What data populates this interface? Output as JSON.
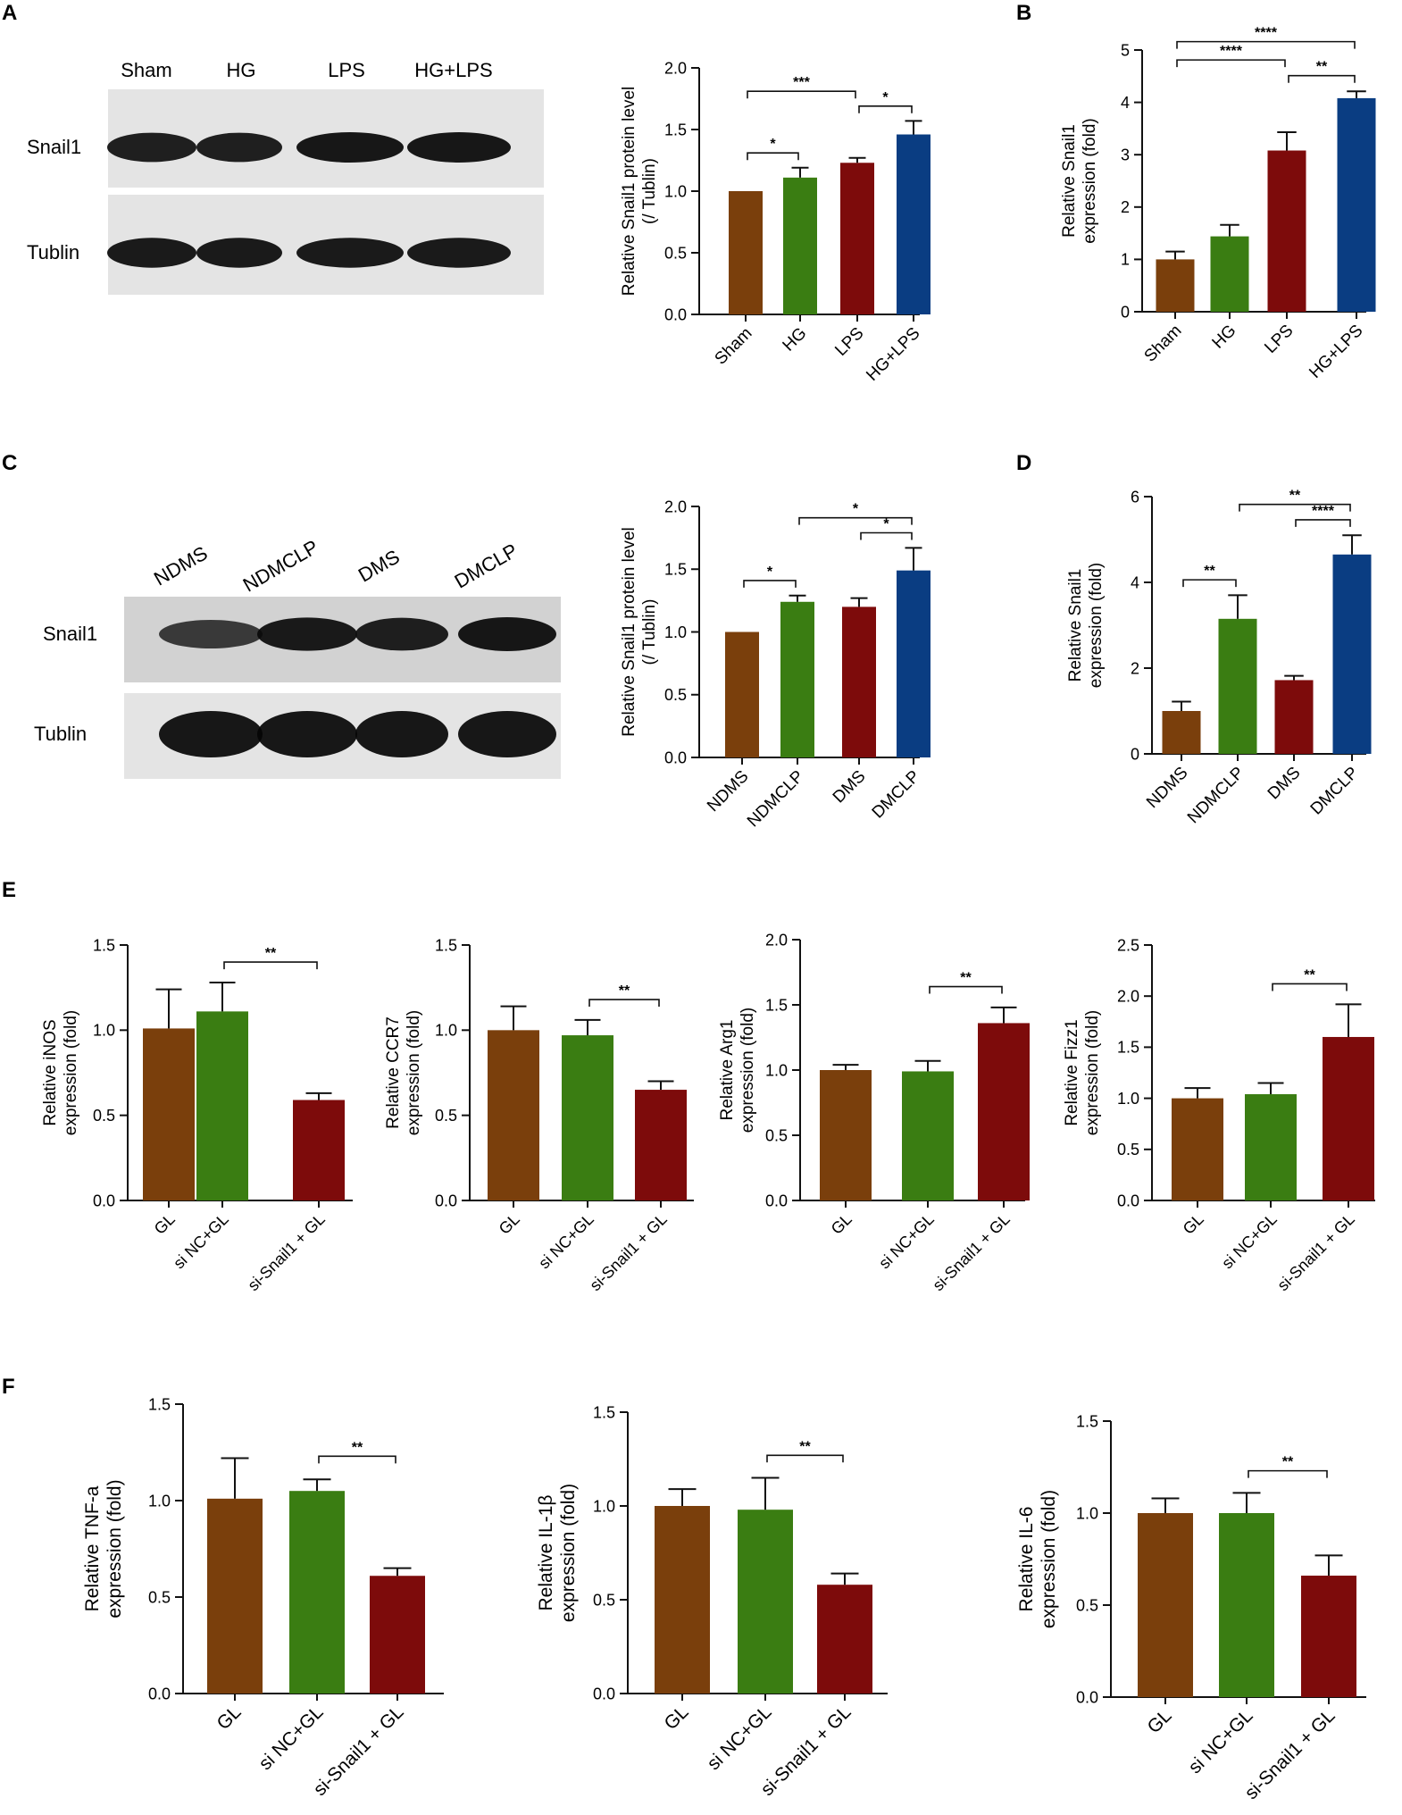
{
  "colors": {
    "brown": "#7a3f0c",
    "green": "#3a7d12",
    "red": "#7d0b0b",
    "blue": "#0a3d82",
    "axis": "#111111"
  },
  "panels": [
    {
      "id": "A",
      "label": "A"
    },
    {
      "id": "B",
      "label": "B"
    },
    {
      "id": "C",
      "label": "C"
    },
    {
      "id": "D",
      "label": "D"
    },
    {
      "id": "E",
      "label": "E"
    },
    {
      "id": "F",
      "label": "F"
    }
  ],
  "blots": [
    {
      "id": "blotA",
      "lane_labels": [
        "Sham",
        "HG",
        "LPS",
        "HG+LPS"
      ],
      "lane_label_rotated": false,
      "row_labels": [
        "Snail1",
        "Tublin"
      ],
      "intensities": {
        "Snail1": [
          0.9,
          0.9,
          1.0,
          1.0
        ],
        "Tublin": [
          0.95,
          0.95,
          0.95,
          0.95
        ]
      }
    },
    {
      "id": "blotC",
      "lane_labels": [
        "NDMS",
        "NDMCLP",
        "DMS",
        "DMCLP"
      ],
      "lane_label_rotated": true,
      "row_labels": [
        "Snail1",
        "Tublin"
      ],
      "intensities": {
        "Snail1": [
          0.55,
          0.95,
          0.9,
          1.0
        ],
        "Tublin": [
          1.0,
          1.0,
          1.0,
          1.0
        ]
      }
    }
  ],
  "chart_data": [
    {
      "id": "A-bar",
      "type": "bar",
      "categories": [
        "Sham",
        "HG",
        "LPS",
        "HG+LPS"
      ],
      "values": [
        1.0,
        1.11,
        1.23,
        1.46
      ],
      "errors": [
        0,
        0.08,
        0.04,
        0.11
      ],
      "colors": [
        "brown",
        "green",
        "red",
        "blue"
      ],
      "ylabel": [
        "Relative Snail1 protein level",
        "(/ Tublin)"
      ],
      "ylim": [
        0,
        2.0
      ],
      "yticks": [
        "0.0",
        "0.5",
        "1.0",
        "1.5",
        "2.0"
      ],
      "significance": [
        {
          "from": 0,
          "to": 1,
          "label": "*"
        },
        {
          "from": 0,
          "to": 2,
          "label": "***"
        },
        {
          "from": 2,
          "to": 3,
          "label": "*"
        }
      ]
    },
    {
      "id": "B-bar",
      "type": "bar",
      "categories": [
        "Sham",
        "HG",
        "LPS",
        "HG+LPS"
      ],
      "values": [
        1.0,
        1.44,
        3.08,
        4.08
      ],
      "errors": [
        0.15,
        0.22,
        0.35,
        0.13
      ],
      "colors": [
        "brown",
        "green",
        "red",
        "blue"
      ],
      "ylabel": [
        "Relative Snail1",
        "expression (fold)"
      ],
      "ylim": [
        0,
        5
      ],
      "yticks": [
        "0",
        "1",
        "2",
        "3",
        "4",
        "5"
      ],
      "significance": [
        {
          "from": 0,
          "to": 3,
          "label": "****"
        },
        {
          "from": 2,
          "to": 3,
          "label": "**"
        },
        {
          "from": 0,
          "to": 2,
          "label": "****"
        }
      ]
    },
    {
      "id": "C-bar",
      "type": "bar",
      "categories": [
        "NDMS",
        "NDMCLP",
        "DMS",
        "DMCLP"
      ],
      "values": [
        1.0,
        1.24,
        1.2,
        1.49
      ],
      "errors": [
        0,
        0.05,
        0.07,
        0.18
      ],
      "colors": [
        "brown",
        "green",
        "red",
        "blue"
      ],
      "ylabel": [
        "Relative Snail1 protein level",
        "(/ Tublin)"
      ],
      "ylim": [
        0,
        2.0
      ],
      "yticks": [
        "0.0",
        "0.5",
        "1.0",
        "1.5",
        "2.0"
      ],
      "significance": [
        {
          "from": 1,
          "to": 3,
          "label": "*"
        },
        {
          "from": 2,
          "to": 3,
          "label": "*"
        },
        {
          "from": 0,
          "to": 1,
          "label": "*"
        }
      ]
    },
    {
      "id": "D-bar",
      "type": "bar",
      "categories": [
        "NDMS",
        "NDMCLP",
        "DMS",
        "DMCLP"
      ],
      "values": [
        1.0,
        3.15,
        1.72,
        4.65
      ],
      "errors": [
        0.22,
        0.55,
        0.1,
        0.45
      ],
      "colors": [
        "brown",
        "green",
        "red",
        "blue"
      ],
      "ylabel": [
        "Relative Snail1",
        "expression (fold)"
      ],
      "ylim": [
        0,
        6
      ],
      "yticks": [
        "0",
        "2",
        "4",
        "6"
      ],
      "significance": [
        {
          "from": 1,
          "to": 3,
          "label": "**"
        },
        {
          "from": 2,
          "to": 3,
          "label": "****"
        },
        {
          "from": 0,
          "to": 1,
          "label": "**"
        }
      ]
    },
    {
      "id": "E1",
      "type": "bar",
      "categories": [
        "GL",
        "si NC+GL",
        "si-Snail1 + GL"
      ],
      "values": [
        1.01,
        1.11,
        0.59
      ],
      "errors": [
        0.23,
        0.17,
        0.04
      ],
      "colors": [
        "brown",
        "green",
        "red"
      ],
      "ylabel": [
        "Relative iNOS",
        "expression (fold)"
      ],
      "ylim": [
        0,
        1.5
      ],
      "yticks": [
        "0.0",
        "0.5",
        "1.0",
        "1.5"
      ],
      "significance": [
        {
          "from": 1,
          "to": 2,
          "label": "**"
        }
      ]
    },
    {
      "id": "E2",
      "type": "bar",
      "categories": [
        "GL",
        "si NC+GL",
        "si-Snail1 + GL"
      ],
      "values": [
        1.0,
        0.97,
        0.65
      ],
      "errors": [
        0.14,
        0.09,
        0.05
      ],
      "colors": [
        "brown",
        "green",
        "red"
      ],
      "ylabel": [
        "Relative CCR7",
        "expression (fold)"
      ],
      "ylim": [
        0,
        1.5
      ],
      "yticks": [
        "0.0",
        "0.5",
        "1.0",
        "1.5"
      ],
      "significance": [
        {
          "from": 1,
          "to": 2,
          "label": "**"
        }
      ]
    },
    {
      "id": "E3",
      "type": "bar",
      "categories": [
        "GL",
        "si NC+GL",
        "si-Snail1 + GL"
      ],
      "values": [
        1.0,
        0.99,
        1.36
      ],
      "errors": [
        0.04,
        0.08,
        0.12
      ],
      "colors": [
        "brown",
        "green",
        "red"
      ],
      "ylabel": [
        "Relative Arg1",
        "expression (fold)"
      ],
      "ylim": [
        0,
        2.0
      ],
      "yticks": [
        "0.0",
        "0.5",
        "1.0",
        "1.5",
        "2.0"
      ],
      "significance": [
        {
          "from": 1,
          "to": 2,
          "label": "**"
        }
      ]
    },
    {
      "id": "E4",
      "type": "bar",
      "categories": [
        "GL",
        "si NC+GL",
        "si-Snail1 + GL"
      ],
      "values": [
        1.0,
        1.04,
        1.6
      ],
      "errors": [
        0.1,
        0.11,
        0.32
      ],
      "colors": [
        "brown",
        "green",
        "red"
      ],
      "ylabel": [
        "Relative Fizz1",
        "expression (fold)"
      ],
      "ylim": [
        0,
        2.5
      ],
      "yticks": [
        "0.0",
        "0.5",
        "1.0",
        "1.5",
        "2.0",
        "2.5"
      ],
      "significance": [
        {
          "from": 1,
          "to": 2,
          "label": "**"
        }
      ]
    },
    {
      "id": "F1",
      "type": "bar",
      "categories": [
        "GL",
        "si NC+GL",
        "si-Snail1 + GL"
      ],
      "values": [
        1.01,
        1.05,
        0.61
      ],
      "errors": [
        0.21,
        0.06,
        0.04
      ],
      "colors": [
        "brown",
        "green",
        "red"
      ],
      "ylabel": [
        "Relative TNF-a",
        "expression (fold)"
      ],
      "ylim": [
        0,
        1.5
      ],
      "yticks": [
        "0.0",
        "0.5",
        "1.0",
        "1.5"
      ],
      "significance": [
        {
          "from": 1,
          "to": 2,
          "label": "**"
        }
      ]
    },
    {
      "id": "F2",
      "type": "bar",
      "categories": [
        "GL",
        "si NC+GL",
        "si-Snail1 + GL"
      ],
      "values": [
        1.0,
        0.98,
        0.58
      ],
      "errors": [
        0.09,
        0.17,
        0.06
      ],
      "colors": [
        "brown",
        "green",
        "red"
      ],
      "ylabel": [
        "Relative IL-1β",
        "expression (fold)"
      ],
      "ylim": [
        0,
        1.5
      ],
      "yticks": [
        "0.0",
        "0.5",
        "1.0",
        "1.5"
      ],
      "significance": [
        {
          "from": 1,
          "to": 2,
          "label": "**"
        }
      ]
    },
    {
      "id": "F3",
      "type": "bar",
      "categories": [
        "GL",
        "si NC+GL",
        "si-Snail1 + GL"
      ],
      "values": [
        1.0,
        1.0,
        0.66
      ],
      "errors": [
        0.08,
        0.11,
        0.11
      ],
      "colors": [
        "brown",
        "green",
        "red"
      ],
      "ylabel": [
        "Relative IL-6",
        "expression (fold)"
      ],
      "ylim": [
        0,
        1.5
      ],
      "yticks": [
        "0.0",
        "0.5",
        "1.0",
        "1.5"
      ],
      "significance": [
        {
          "from": 1,
          "to": 2,
          "label": "**"
        }
      ]
    }
  ]
}
